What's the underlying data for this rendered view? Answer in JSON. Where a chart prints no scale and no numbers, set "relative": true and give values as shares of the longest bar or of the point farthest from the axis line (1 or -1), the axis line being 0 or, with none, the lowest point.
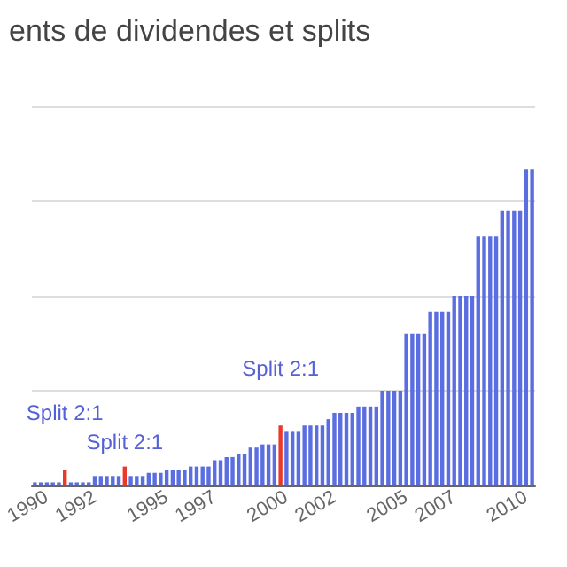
{
  "chart_data": {
    "type": "bar",
    "title": "ents de dividendes et splits",
    "relative": true,
    "grid": "y",
    "categories": [
      null,
      null,
      "1990",
      null,
      null,
      null,
      null,
      null,
      null,
      null,
      "1992",
      null,
      null,
      null,
      null,
      null,
      null,
      null,
      null,
      null,
      null,
      null,
      "1995",
      null,
      null,
      null,
      null,
      null,
      null,
      null,
      "1997",
      null,
      null,
      null,
      null,
      null,
      null,
      null,
      null,
      null,
      null,
      null,
      "2000",
      null,
      null,
      null,
      null,
      null,
      null,
      null,
      "2002",
      null,
      null,
      null,
      null,
      null,
      null,
      null,
      null,
      null,
      null,
      null,
      "2005",
      null,
      null,
      null,
      null,
      null,
      null,
      null,
      "2007",
      null,
      null,
      null,
      null,
      null,
      null,
      null,
      null,
      null,
      null,
      null,
      "2010",
      null
    ],
    "values": [
      0.01,
      0.01,
      0.01,
      0.01,
      0.01,
      0.05,
      0.01,
      0.01,
      0.01,
      0.01,
      0.03,
      0.03,
      0.03,
      0.03,
      0.03,
      0.06,
      0.03,
      0.03,
      0.03,
      0.04,
      0.04,
      0.04,
      0.05,
      0.05,
      0.05,
      0.05,
      0.06,
      0.06,
      0.06,
      0.06,
      0.08,
      0.08,
      0.09,
      0.09,
      0.1,
      0.1,
      0.12,
      0.12,
      0.13,
      0.13,
      0.13,
      0.19,
      0.17,
      0.17,
      0.17,
      0.19,
      0.19,
      0.19,
      0.19,
      0.21,
      0.23,
      0.23,
      0.23,
      0.23,
      0.25,
      0.25,
      0.25,
      0.25,
      0.3,
      0.3,
      0.3,
      0.3,
      0.48,
      0.48,
      0.48,
      0.48,
      0.55,
      0.55,
      0.55,
      0.55,
      0.6,
      0.6,
      0.6,
      0.6,
      0.79,
      0.79,
      0.79,
      0.79,
      0.87,
      0.87,
      0.87,
      0.87,
      1,
      1
    ],
    "colors": [
      "#5b6ee1",
      "#5b6ee1",
      "#5b6ee1",
      "#5b6ee1",
      "#5b6ee1",
      "#e8392b",
      "#5b6ee1",
      "#5b6ee1",
      "#5b6ee1",
      "#5b6ee1",
      "#5b6ee1",
      "#5b6ee1",
      "#5b6ee1",
      "#5b6ee1",
      "#5b6ee1",
      "#e8392b",
      "#5b6ee1",
      "#5b6ee1",
      "#5b6ee1",
      "#5b6ee1",
      "#5b6ee1",
      "#5b6ee1",
      "#5b6ee1",
      "#5b6ee1",
      "#5b6ee1",
      "#5b6ee1",
      "#5b6ee1",
      "#5b6ee1",
      "#5b6ee1",
      "#5b6ee1",
      "#5b6ee1",
      "#5b6ee1",
      "#5b6ee1",
      "#5b6ee1",
      "#5b6ee1",
      "#5b6ee1",
      "#5b6ee1",
      "#5b6ee1",
      "#5b6ee1",
      "#5b6ee1",
      "#5b6ee1",
      "#e8392b",
      "#5b6ee1",
      "#5b6ee1",
      "#5b6ee1",
      "#5b6ee1",
      "#5b6ee1",
      "#5b6ee1",
      "#5b6ee1",
      "#5b6ee1",
      "#5b6ee1",
      "#5b6ee1",
      "#5b6ee1",
      "#5b6ee1",
      "#5b6ee1",
      "#5b6ee1",
      "#5b6ee1",
      "#5b6ee1",
      "#5b6ee1",
      "#5b6ee1",
      "#5b6ee1",
      "#5b6ee1",
      "#5b6ee1",
      "#5b6ee1",
      "#5b6ee1",
      "#5b6ee1",
      "#5b6ee1",
      "#5b6ee1",
      "#5b6ee1",
      "#5b6ee1",
      "#5b6ee1",
      "#5b6ee1",
      "#5b6ee1",
      "#5b6ee1",
      "#5b6ee1",
      "#5b6ee1",
      "#5b6ee1",
      "#5b6ee1",
      "#5b6ee1",
      "#5b6ee1",
      "#5b6ee1",
      "#5b6ee1",
      "#5b6ee1",
      "#5b6ee1"
    ],
    "annotations": [
      "Split 2:1",
      "Split 2:1",
      "Split 2:1"
    ]
  }
}
